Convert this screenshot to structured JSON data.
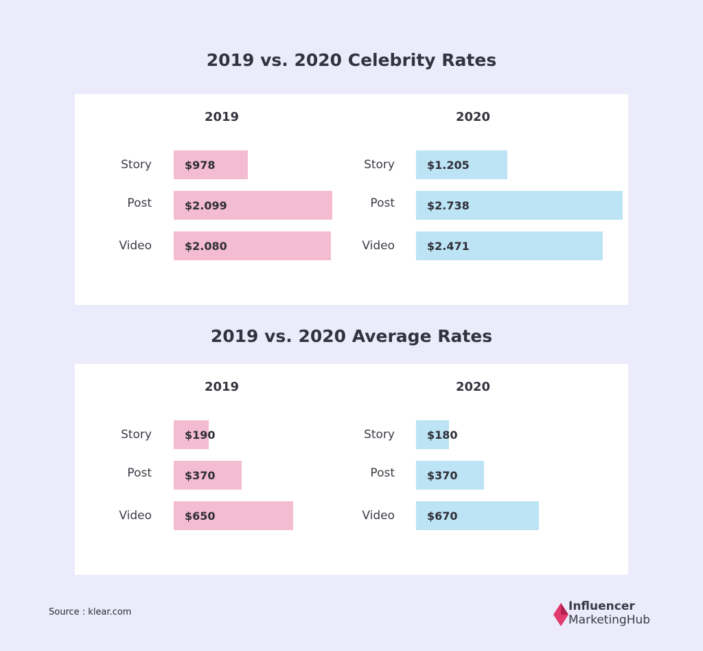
{
  "source": "Source : klear.com",
  "logo": {
    "line1": "Influencer",
    "line2": "MarketingHub"
  },
  "colors": {
    "left_bar": "#f4bcd0",
    "right_bar": "#bde4f4"
  },
  "chart_data": [
    {
      "type": "bar",
      "orientation": "horizontal",
      "title": "2019 vs. 2020 Celebrity Rates",
      "categories": [
        "Story",
        "Post",
        "Video"
      ],
      "series": [
        {
          "name": "2019",
          "values": [
            978,
            2099,
            2080
          ],
          "labels": [
            "$978",
            "$2.099",
            "$2.080"
          ]
        },
        {
          "name": "2020",
          "values": [
            1205,
            2738,
            2471
          ],
          "labels": [
            "$1.205",
            "$2.738",
            "$2.471"
          ]
        }
      ]
    },
    {
      "type": "bar",
      "orientation": "horizontal",
      "title": "2019 vs. 2020 Average Rates",
      "categories": [
        "Story",
        "Post",
        "Video"
      ],
      "series": [
        {
          "name": "2019",
          "values": [
            190,
            370,
            650
          ],
          "labels": [
            "$190",
            "$370",
            "$650"
          ]
        },
        {
          "name": "2020",
          "values": [
            180,
            370,
            670
          ],
          "labels": [
            "$180",
            "$370",
            "$670"
          ]
        }
      ]
    }
  ]
}
